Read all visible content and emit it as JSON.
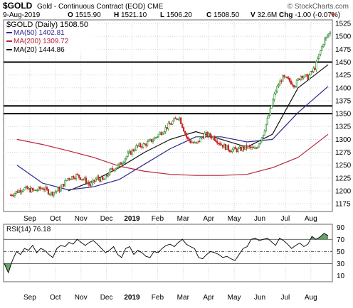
{
  "header": {
    "symbol": "$GOLD",
    "description": "Gold - Continuous Contract (EOD)",
    "exchange": "CME",
    "brand": "© StockCharts.com",
    "date": "9-Aug-2019",
    "quote": [
      {
        "label": "O",
        "value": "1515.90"
      },
      {
        "label": "H",
        "value": "1521.10"
      },
      {
        "label": "L",
        "value": "1506.20"
      },
      {
        "label": "C",
        "value": "1508.50"
      },
      {
        "label": "V",
        "value": "32.6M"
      },
      {
        "label": "Chg",
        "value": "-1.00 (-0.07%)"
      }
    ],
    "change_marker": "▼"
  },
  "colors": {
    "up": "#2e8b2e",
    "down": "#cc2222",
    "ma50": "#2b2b8f",
    "ma200": "#b8263a",
    "ma20": "#111111",
    "rsi_fill": "#4f9a4f",
    "grid": "#d5d5d5"
  },
  "chart_data": [
    {
      "type": "candlestick",
      "title": "$GOLD (Daily) 1508.50",
      "legend_placement": "top-left",
      "legend": [
        {
          "name": "MA(50)",
          "value": "1402.81",
          "color": "#2b2b8f"
        },
        {
          "name": "MA(200)",
          "value": "1309.72",
          "color": "#b8263a"
        },
        {
          "name": "MA(20)",
          "value": "1444.86",
          "color": "#111111"
        }
      ],
      "x_labels": [
        "Sep",
        "Oct",
        "Nov",
        "Dec",
        "2019",
        "Feb",
        "Mar",
        "Apr",
        "May",
        "Jun",
        "Jul",
        "Aug"
      ],
      "y_ticks": [
        1175,
        1200,
        1225,
        1250,
        1275,
        1300,
        1325,
        1350,
        1375,
        1400,
        1425,
        1450,
        1475,
        1500,
        1525
      ],
      "ylim": [
        1160,
        1532
      ],
      "grid": true,
      "horizontal_lines": [
        1350,
        1365,
        1450
      ],
      "months": [
        "2018-08",
        "2018-09",
        "2018-10",
        "2018-11",
        "2018-12",
        "2019-01",
        "2019-02",
        "2019-03",
        "2019-04",
        "2019-05",
        "2019-06",
        "2019-07",
        "2019-08"
      ],
      "close_path": [
        [
          "2018-08",
          1192
        ],
        [
          "2018-08",
          1205
        ],
        [
          "2018-09",
          1200
        ],
        [
          "2018-09",
          1206
        ],
        [
          "2018-09",
          1195
        ],
        [
          "2018-10",
          1203
        ],
        [
          "2018-10",
          1225
        ],
        [
          "2018-10",
          1230
        ],
        [
          "2018-11",
          1222
        ],
        [
          "2018-11",
          1210
        ],
        [
          "2018-11",
          1225
        ],
        [
          "2018-11",
          1220
        ],
        [
          "2018-12",
          1240
        ],
        [
          "2018-12",
          1250
        ],
        [
          "2018-12",
          1270
        ],
        [
          "2019-01",
          1285
        ],
        [
          "2019-01",
          1290
        ],
        [
          "2019-01",
          1300
        ],
        [
          "2019-02",
          1315
        ],
        [
          "2019-02",
          1330
        ],
        [
          "2019-02",
          1345
        ],
        [
          "2019-03",
          1300
        ],
        [
          "2019-03",
          1290
        ],
        [
          "2019-03",
          1310
        ],
        [
          "2019-04",
          1305
        ],
        [
          "2019-04",
          1290
        ],
        [
          "2019-04",
          1280
        ],
        [
          "2019-05",
          1280
        ],
        [
          "2019-05",
          1285
        ],
        [
          "2019-05",
          1280
        ],
        [
          "2019-06",
          1310
        ],
        [
          "2019-06",
          1350
        ],
        [
          "2019-06",
          1395
        ],
        [
          "2019-06",
          1420
        ],
        [
          "2019-07",
          1415
        ],
        [
          "2019-07",
          1405
        ],
        [
          "2019-07",
          1425
        ],
        [
          "2019-07",
          1420
        ],
        [
          "2019-08",
          1440
        ],
        [
          "2019-08",
          1490
        ],
        [
          "2019-08",
          1508.5
        ]
      ],
      "ma_series": [
        {
          "name": "MA(20)",
          "key": "ma20",
          "points": [
            [
              "2018-10",
              1200
            ],
            [
              "2018-11",
              1220
            ],
            [
              "2018-12",
              1245
            ],
            [
              "2019-01",
              1275
            ],
            [
              "2019-02",
              1300
            ],
            [
              "2019-03",
              1315
            ],
            [
              "2019-04",
              1300
            ],
            [
              "2019-05",
              1285
            ],
            [
              "2019-06",
              1310
            ],
            [
              "2019-07",
              1400
            ],
            [
              "2019-08",
              1444.86
            ]
          ]
        },
        {
          "name": "MA(50)",
          "key": "ma50",
          "points": [
            [
              "2018-08",
              1250
            ],
            [
              "2018-09",
              1215
            ],
            [
              "2018-10",
              1202
            ],
            [
              "2018-11",
              1208
            ],
            [
              "2018-12",
              1222
            ],
            [
              "2019-01",
              1252
            ],
            [
              "2019-02",
              1282
            ],
            [
              "2019-03",
              1305
            ],
            [
              "2019-04",
              1305
            ],
            [
              "2019-05",
              1295
            ],
            [
              "2019-06",
              1300
            ],
            [
              "2019-07",
              1352
            ],
            [
              "2019-08",
              1402.81
            ]
          ]
        },
        {
          "name": "MA(200)",
          "key": "ma200",
          "points": [
            [
              "2018-08",
              1300
            ],
            [
              "2018-09",
              1290
            ],
            [
              "2018-10",
              1278
            ],
            [
              "2018-11",
              1265
            ],
            [
              "2018-12",
              1248
            ],
            [
              "2019-01",
              1238
            ],
            [
              "2019-02",
              1232
            ],
            [
              "2019-03",
              1230
            ],
            [
              "2019-04",
              1230
            ],
            [
              "2019-05",
              1232
            ],
            [
              "2019-06",
              1245
            ],
            [
              "2019-07",
              1265
            ],
            [
              "2019-08",
              1309.72
            ]
          ]
        }
      ]
    },
    {
      "type": "line",
      "title": "RSI(14) 76.18",
      "legend_placement": "top-left",
      "y_ticks": [
        10,
        30,
        50,
        70,
        90
      ],
      "ylim": [
        0,
        95
      ],
      "grid": true,
      "horizontal_lines": [
        30,
        50,
        70
      ],
      "x_labels": [
        "Sep",
        "Oct",
        "Nov",
        "Dec",
        "2019",
        "Feb",
        "Mar",
        "Apr",
        "May",
        "Jun",
        "Jul",
        "Aug"
      ],
      "months": [
        "2018-08",
        "2018-09",
        "2018-10",
        "2018-11",
        "2018-12",
        "2019-01",
        "2019-02",
        "2019-03",
        "2019-04",
        "2019-05",
        "2019-06",
        "2019-07",
        "2019-08"
      ],
      "series": [
        {
          "name": "RSI(14)",
          "values": [
            30,
            15,
            35,
            50,
            45,
            55,
            52,
            60,
            48,
            55,
            52,
            45,
            40,
            55,
            60,
            58,
            65,
            62,
            70,
            65,
            60,
            65,
            68,
            62,
            55,
            48,
            52,
            58,
            45,
            40,
            55,
            58,
            45,
            52,
            48,
            42,
            40,
            50,
            48,
            55,
            60,
            62,
            58,
            65,
            70,
            62,
            58,
            55,
            40,
            38,
            45,
            50,
            48,
            45,
            40,
            42,
            38,
            35,
            45,
            55,
            58,
            70,
            72,
            68,
            70,
            72,
            66,
            60,
            72,
            68,
            62,
            55,
            60,
            64,
            58,
            62,
            75,
            70,
            74,
            80,
            76.18
          ]
        }
      ]
    }
  ]
}
